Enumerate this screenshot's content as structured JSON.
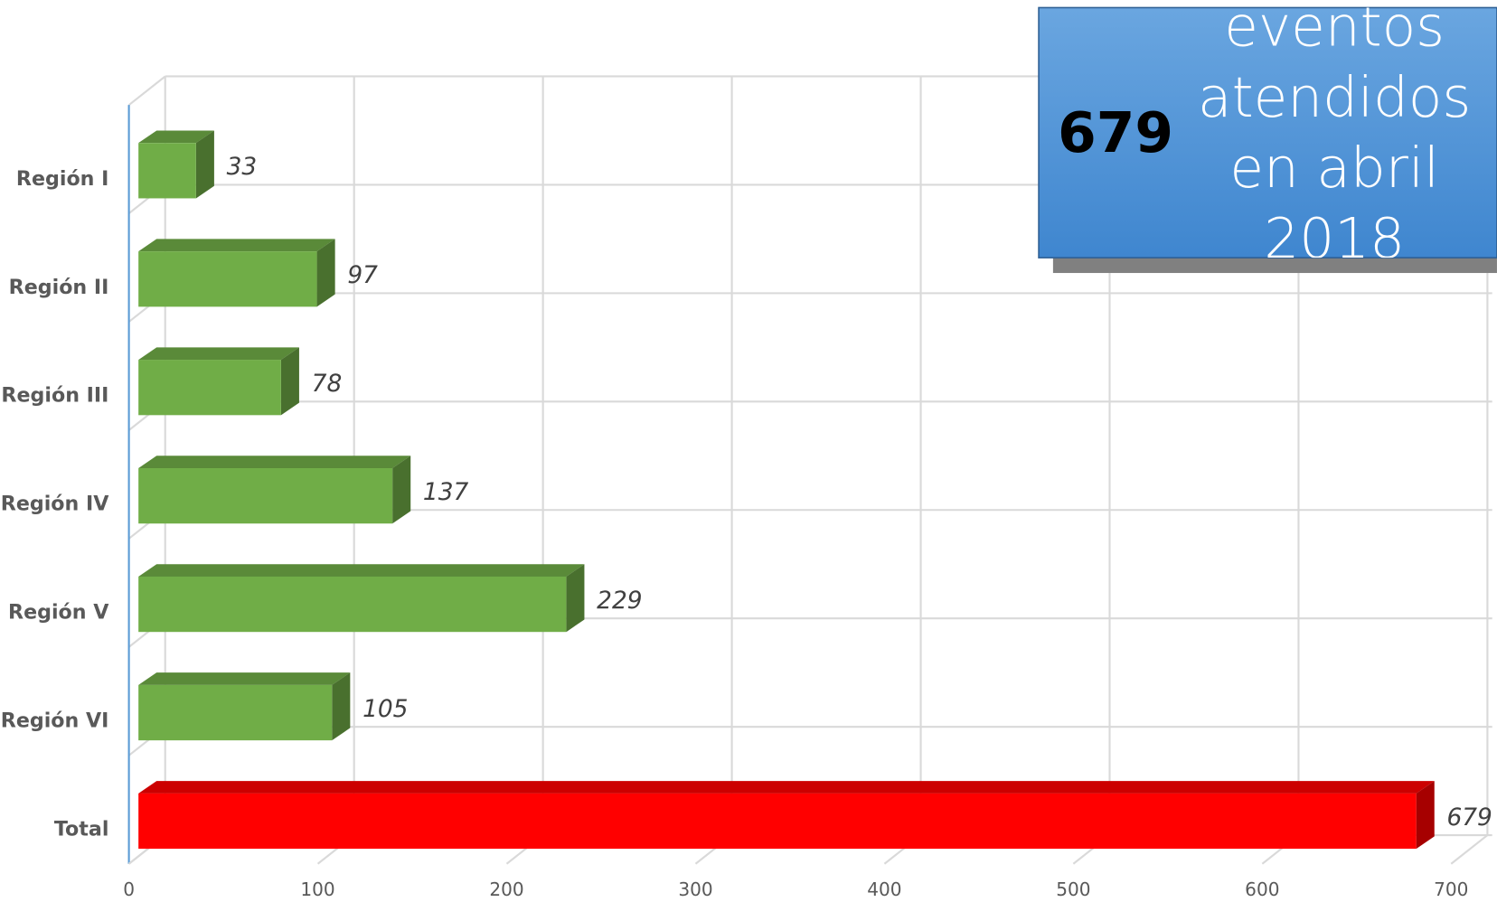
{
  "chart_data": {
    "type": "bar3d-horizontal",
    "categories": [
      "Región I",
      "Región II",
      "Región III",
      "Región IV",
      "Región V",
      "Región VI",
      "Total"
    ],
    "values": [
      33,
      97,
      78,
      137,
      229,
      105,
      679
    ],
    "colors": [
      "#70ad47",
      "#70ad47",
      "#70ad47",
      "#70ad47",
      "#70ad47",
      "#70ad47",
      "#ff0000"
    ],
    "xlim": [
      0,
      700
    ],
    "xticks": [
      0,
      100,
      200,
      300,
      400,
      500,
      600,
      700
    ],
    "grid": true,
    "annotation": {
      "number": "679",
      "text": "eventos atendidos en abril 2018"
    }
  }
}
